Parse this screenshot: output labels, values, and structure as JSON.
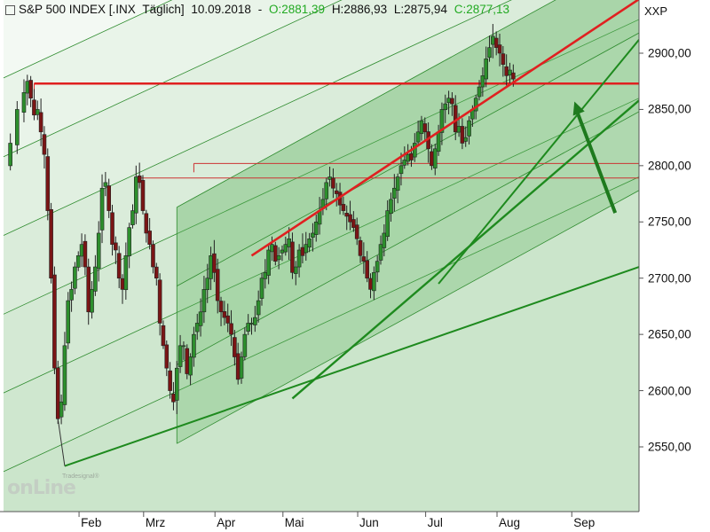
{
  "header": {
    "instrument": "S&P 500 INDEX [.INX",
    "period": "Täglich]",
    "date": "10.09.2018",
    "sep": "-",
    "open": "O:2881,39",
    "high": "H:2886,93",
    "low": "L:2875,94",
    "close": "C:2877,13"
  },
  "symbol": "XXP",
  "logo": {
    "small": "Tradesignal®",
    "big": "onLine"
  },
  "colors": {
    "up": "#2d9a2d",
    "down": "#8b1a1a",
    "red_line": "#e02020",
    "green_line": "#1e8a1e",
    "channel_fill": "#6fbf6f"
  },
  "chart_data": {
    "type": "candlestick",
    "ylim": [
      2500,
      2950
    ],
    "yticks": [
      2550,
      2600,
      2650,
      2700,
      2750,
      2800,
      2850,
      2900
    ],
    "ytick_labels": [
      "2550,00",
      "2600,00",
      "2650,00",
      "2700,00",
      "2750,00",
      "2800,00",
      "2850,00",
      "2900,00"
    ],
    "xticks": [
      {
        "label": "Feb",
        "day": 23
      },
      {
        "label": "Mrz",
        "day": 42
      },
      {
        "label": "Apr",
        "day": 63
      },
      {
        "label": "Mai",
        "day": 83
      },
      {
        "label": "Jun",
        "day": 105
      },
      {
        "label": "Jul",
        "day": 125
      },
      {
        "label": "Aug",
        "day": 146
      },
      {
        "label": "Sep",
        "day": 168
      }
    ],
    "day_range": [
      0,
      187
    ],
    "price_path": [
      [
        0,
        2800
      ],
      [
        2,
        2820
      ],
      [
        4,
        2850
      ],
      [
        6,
        2865
      ],
      [
        7,
        2875
      ],
      [
        8,
        2860
      ],
      [
        9,
        2845
      ],
      [
        10,
        2850
      ],
      [
        11,
        2830
      ],
      [
        12,
        2810
      ],
      [
        13,
        2760
      ],
      [
        14,
        2700
      ],
      [
        15,
        2620
      ],
      [
        16,
        2575
      ],
      [
        17,
        2590
      ],
      [
        18,
        2640
      ],
      [
        19,
        2680
      ],
      [
        20,
        2690
      ],
      [
        21,
        2710
      ],
      [
        22,
        2720
      ],
      [
        23,
        2730
      ],
      [
        24,
        2710
      ],
      [
        25,
        2670
      ],
      [
        26,
        2690
      ],
      [
        27,
        2710
      ],
      [
        28,
        2740
      ],
      [
        29,
        2780
      ],
      [
        30,
        2785
      ],
      [
        31,
        2760
      ],
      [
        32,
        2730
      ],
      [
        33,
        2725
      ],
      [
        34,
        2700
      ],
      [
        35,
        2690
      ],
      [
        36,
        2720
      ],
      [
        37,
        2745
      ],
      [
        38,
        2760
      ],
      [
        39,
        2790
      ],
      [
        40,
        2785
      ],
      [
        41,
        2760
      ],
      [
        42,
        2740
      ],
      [
        43,
        2730
      ],
      [
        44,
        2710
      ],
      [
        45,
        2700
      ],
      [
        46,
        2660
      ],
      [
        47,
        2640
      ],
      [
        48,
        2620
      ],
      [
        49,
        2600
      ],
      [
        50,
        2590
      ],
      [
        51,
        2620
      ],
      [
        52,
        2640
      ],
      [
        53,
        2640
      ],
      [
        54,
        2615
      ],
      [
        55,
        2630
      ],
      [
        56,
        2650
      ],
      [
        57,
        2660
      ],
      [
        58,
        2670
      ],
      [
        59,
        2690
      ],
      [
        60,
        2700
      ],
      [
        61,
        2720
      ],
      [
        62,
        2705
      ],
      [
        63,
        2680
      ],
      [
        64,
        2670
      ],
      [
        65,
        2665
      ],
      [
        66,
        2660
      ],
      [
        67,
        2650
      ],
      [
        68,
        2630
      ],
      [
        69,
        2610
      ],
      [
        70,
        2630
      ],
      [
        71,
        2650
      ],
      [
        72,
        2660
      ],
      [
        73,
        2660
      ],
      [
        74,
        2665
      ],
      [
        75,
        2680
      ],
      [
        76,
        2700
      ],
      [
        77,
        2705
      ],
      [
        78,
        2725
      ],
      [
        79,
        2730
      ],
      [
        80,
        2715
      ],
      [
        81,
        2720
      ],
      [
        82,
        2725
      ],
      [
        83,
        2730
      ],
      [
        84,
        2735
      ],
      [
        85,
        2705
      ],
      [
        86,
        2710
      ],
      [
        87,
        2725
      ],
      [
        88,
        2720
      ],
      [
        89,
        2730
      ],
      [
        90,
        2735
      ],
      [
        91,
        2740
      ],
      [
        92,
        2750
      ],
      [
        93,
        2760
      ],
      [
        94,
        2770
      ],
      [
        95,
        2785
      ],
      [
        96,
        2790
      ],
      [
        97,
        2780
      ],
      [
        98,
        2775
      ],
      [
        99,
        2765
      ],
      [
        100,
        2760
      ],
      [
        101,
        2755
      ],
      [
        102,
        2750
      ],
      [
        103,
        2745
      ],
      [
        104,
        2735
      ],
      [
        105,
        2720
      ],
      [
        106,
        2715
      ],
      [
        107,
        2700
      ],
      [
        108,
        2690
      ],
      [
        109,
        2705
      ],
      [
        110,
        2715
      ],
      [
        111,
        2730
      ],
      [
        112,
        2740
      ],
      [
        113,
        2760
      ],
      [
        114,
        2770
      ],
      [
        115,
        2780
      ],
      [
        116,
        2790
      ],
      [
        117,
        2800
      ],
      [
        118,
        2805
      ],
      [
        119,
        2810
      ],
      [
        120,
        2805
      ],
      [
        121,
        2820
      ],
      [
        122,
        2830
      ],
      [
        123,
        2840
      ],
      [
        124,
        2830
      ],
      [
        125,
        2815
      ],
      [
        126,
        2800
      ],
      [
        127,
        2815
      ],
      [
        128,
        2830
      ],
      [
        129,
        2850
      ],
      [
        130,
        2855
      ],
      [
        131,
        2860
      ],
      [
        132,
        2855
      ],
      [
        133,
        2830
      ],
      [
        134,
        2835
      ],
      [
        135,
        2820
      ],
      [
        136,
        2825
      ],
      [
        137,
        2840
      ],
      [
        138,
        2850
      ],
      [
        139,
        2860
      ],
      [
        140,
        2870
      ],
      [
        141,
        2880
      ],
      [
        142,
        2895
      ],
      [
        143,
        2905
      ],
      [
        144,
        2915
      ],
      [
        145,
        2905
      ],
      [
        146,
        2900
      ],
      [
        147,
        2890
      ],
      [
        148,
        2880
      ],
      [
        149,
        2885
      ],
      [
        150,
        2877
      ]
    ],
    "horizontal_lines": [
      {
        "level": 2873,
        "from_day": 9,
        "color": "#e02020",
        "width": 2.5
      },
      {
        "level": 2802,
        "from_day": 56,
        "color": "#cc3333",
        "width": 1
      },
      {
        "level": 2789,
        "from_day": 40,
        "color": "#cc3333",
        "width": 1
      }
    ],
    "trend_lines": [
      {
        "from": [
          73,
          2720
        ],
        "to": [
          187,
          2948
        ],
        "color": "#e02020",
        "width": 2.6
      },
      {
        "from": [
          18,
          2533
        ],
        "to": [
          187,
          2710
        ],
        "color": "#1e8a1e",
        "width": 2
      },
      {
        "from": [
          85,
          2593
        ],
        "to": [
          187,
          2858
        ],
        "color": "#1e8a1e",
        "width": 2.4
      },
      {
        "from": [
          128,
          2695
        ],
        "to": [
          187,
          2912
        ],
        "color": "#1e8a1e",
        "width": 2
      }
    ],
    "outer_channel": {
      "base": [
        [
          0,
          2528
        ],
        [
          187,
          2790
        ]
      ],
      "offsets": [
        70,
        140,
        210,
        280,
        350,
        420
      ],
      "fill": "#eaf5ea"
    },
    "inner_channel": {
      "base": [
        [
          51,
          2553
        ],
        [
          187,
          2778
        ]
      ],
      "offsets": [
        0,
        70,
        140,
        210
      ],
      "fill": "#5fb55f"
    },
    "arrow": {
      "from": [
        180,
        2758
      ],
      "to": [
        168,
        2857
      ],
      "color": "#1e7a1e"
    }
  }
}
